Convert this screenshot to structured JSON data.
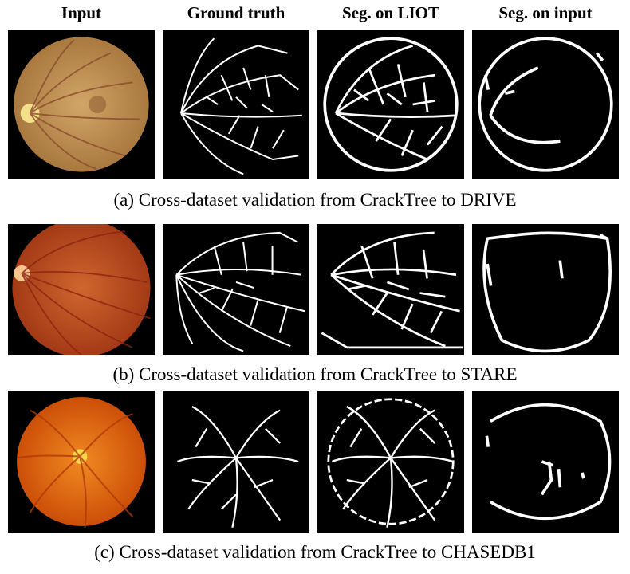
{
  "columns": [
    "Input",
    "Ground truth",
    "Seg. on LIOT",
    "Seg. on input"
  ],
  "rows": [
    {
      "caption": "(a) Cross-dataset validation from CrackTree to DRIVE",
      "dataset": "DRIVE",
      "fundus": {
        "outer": "#b8864a",
        "inner": "#d1a568",
        "disc": "#f3e08a",
        "vessel": "#8a4a2c",
        "disc_side": "left"
      }
    },
    {
      "caption": "(b) Cross-dataset validation from CrackTree to STARE",
      "dataset": "STARE",
      "fundus": {
        "outer": "#b0441d",
        "inner": "#d0662e",
        "disc": "#f6c48c",
        "vessel": "#8a2412",
        "disc_side": "left"
      }
    },
    {
      "caption": "(c) Cross-dataset validation from CrackTree to CHASEDB1",
      "dataset": "CHASEDB1",
      "fundus": {
        "outer": "#d6580c",
        "inner": "#f18a22",
        "disc": "#f8d64a",
        "vessel": "#b03a08",
        "disc_side": "center"
      }
    }
  ]
}
